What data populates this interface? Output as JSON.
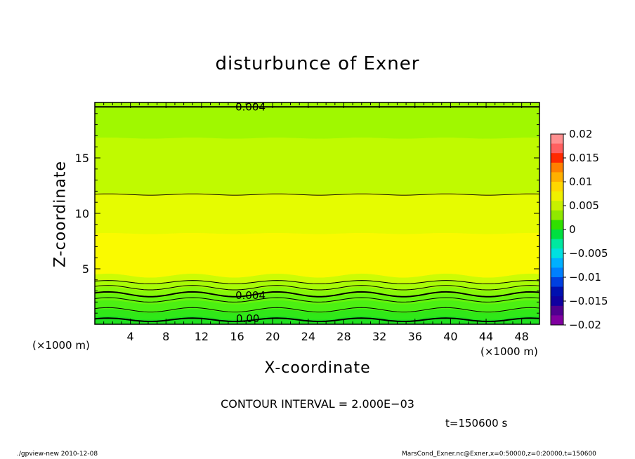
{
  "title": "disturbunce of Exner",
  "chart_data": {
    "type": "heatmap",
    "title": "disturbunce of Exner",
    "xlabel": "X-coordinate",
    "ylabel": "Z-coordinate",
    "x_unit_left": "(×1000 m)",
    "x_unit_right": "(×1000 m)",
    "xlim": [
      0,
      50
    ],
    "ylim": [
      0,
      20
    ],
    "x_ticks": [
      4,
      8,
      12,
      16,
      20,
      24,
      28,
      32,
      36,
      40,
      44,
      48
    ],
    "y_ticks": [
      5,
      10,
      15
    ],
    "contour_labels": [
      {
        "text": "0.004",
        "x": 17.5,
        "y": 19.6
      },
      {
        "text": "0.004",
        "x": 17.5,
        "y": 2.6
      },
      {
        "text": "0.00",
        "x": 17.2,
        "y": 0.5
      }
    ],
    "bands": [
      {
        "z0": 0.0,
        "z1": 0.6,
        "color": "#20e020"
      },
      {
        "z0": 0.6,
        "z1": 1.2,
        "color": "#30e818"
      },
      {
        "z0": 1.2,
        "z1": 2.0,
        "color": "#4cf012"
      },
      {
        "z0": 2.0,
        "z1": 2.6,
        "color": "#66f40c"
      },
      {
        "z0": 2.6,
        "z1": 3.2,
        "color": "#86f808"
      },
      {
        "z0": 3.2,
        "z1": 3.8,
        "color": "#a8fc06"
      },
      {
        "z0": 3.8,
        "z1": 4.4,
        "color": "#ccfc04"
      },
      {
        "z0": 4.4,
        "z1": 8.2,
        "color": "#fafa00"
      },
      {
        "z0": 8.2,
        "z1": 11.8,
        "color": "#e6fc00"
      },
      {
        "z0": 11.8,
        "z1": 16.8,
        "color": "#c0fa00"
      },
      {
        "z0": 16.8,
        "z1": 20.0,
        "color": "#a0f800"
      }
    ],
    "contour_lines": [
      {
        "z": 0.4,
        "amp": 0.15,
        "bold": true
      },
      {
        "z": 1.3,
        "amp": 0.2,
        "bold": false
      },
      {
        "z": 2.2,
        "amp": 0.2,
        "bold": false
      },
      {
        "z": 2.7,
        "amp": 0.22,
        "bold": true
      },
      {
        "z": 3.3,
        "amp": 0.2,
        "bold": false
      },
      {
        "z": 3.8,
        "amp": 0.15,
        "bold": false
      },
      {
        "z": 11.7,
        "amp": 0.06,
        "bold": false
      },
      {
        "z": 19.6,
        "amp": 0.0,
        "bold": true
      }
    ],
    "colorbar": {
      "ticks": [
        "0.02",
        "0.015",
        "0.01",
        "0.005",
        "0",
        "−0.005",
        "−0.01",
        "−0.015",
        "−0.02"
      ],
      "colors": [
        "#ff9090",
        "#ff6060",
        "#ff2a00",
        "#ff8000",
        "#ffb000",
        "#ffd800",
        "#f0f000",
        "#c8f000",
        "#90e800",
        "#30e000",
        "#00e040",
        "#00e8a0",
        "#00e0e0",
        "#00b0ff",
        "#0080ff",
        "#0040e0",
        "#0010b0",
        "#1000a0",
        "#500090",
        "#8000a0"
      ]
    }
  },
  "contour_interval": "CONTOUR INTERVAL = 2.000E−03",
  "time_label": "t=150600 s",
  "footer_left": "./gpview-new   2010-12-08",
  "footer_right": "MarsCond_Exner.nc@Exner,x=0:50000,z=0:20000,t=150600"
}
